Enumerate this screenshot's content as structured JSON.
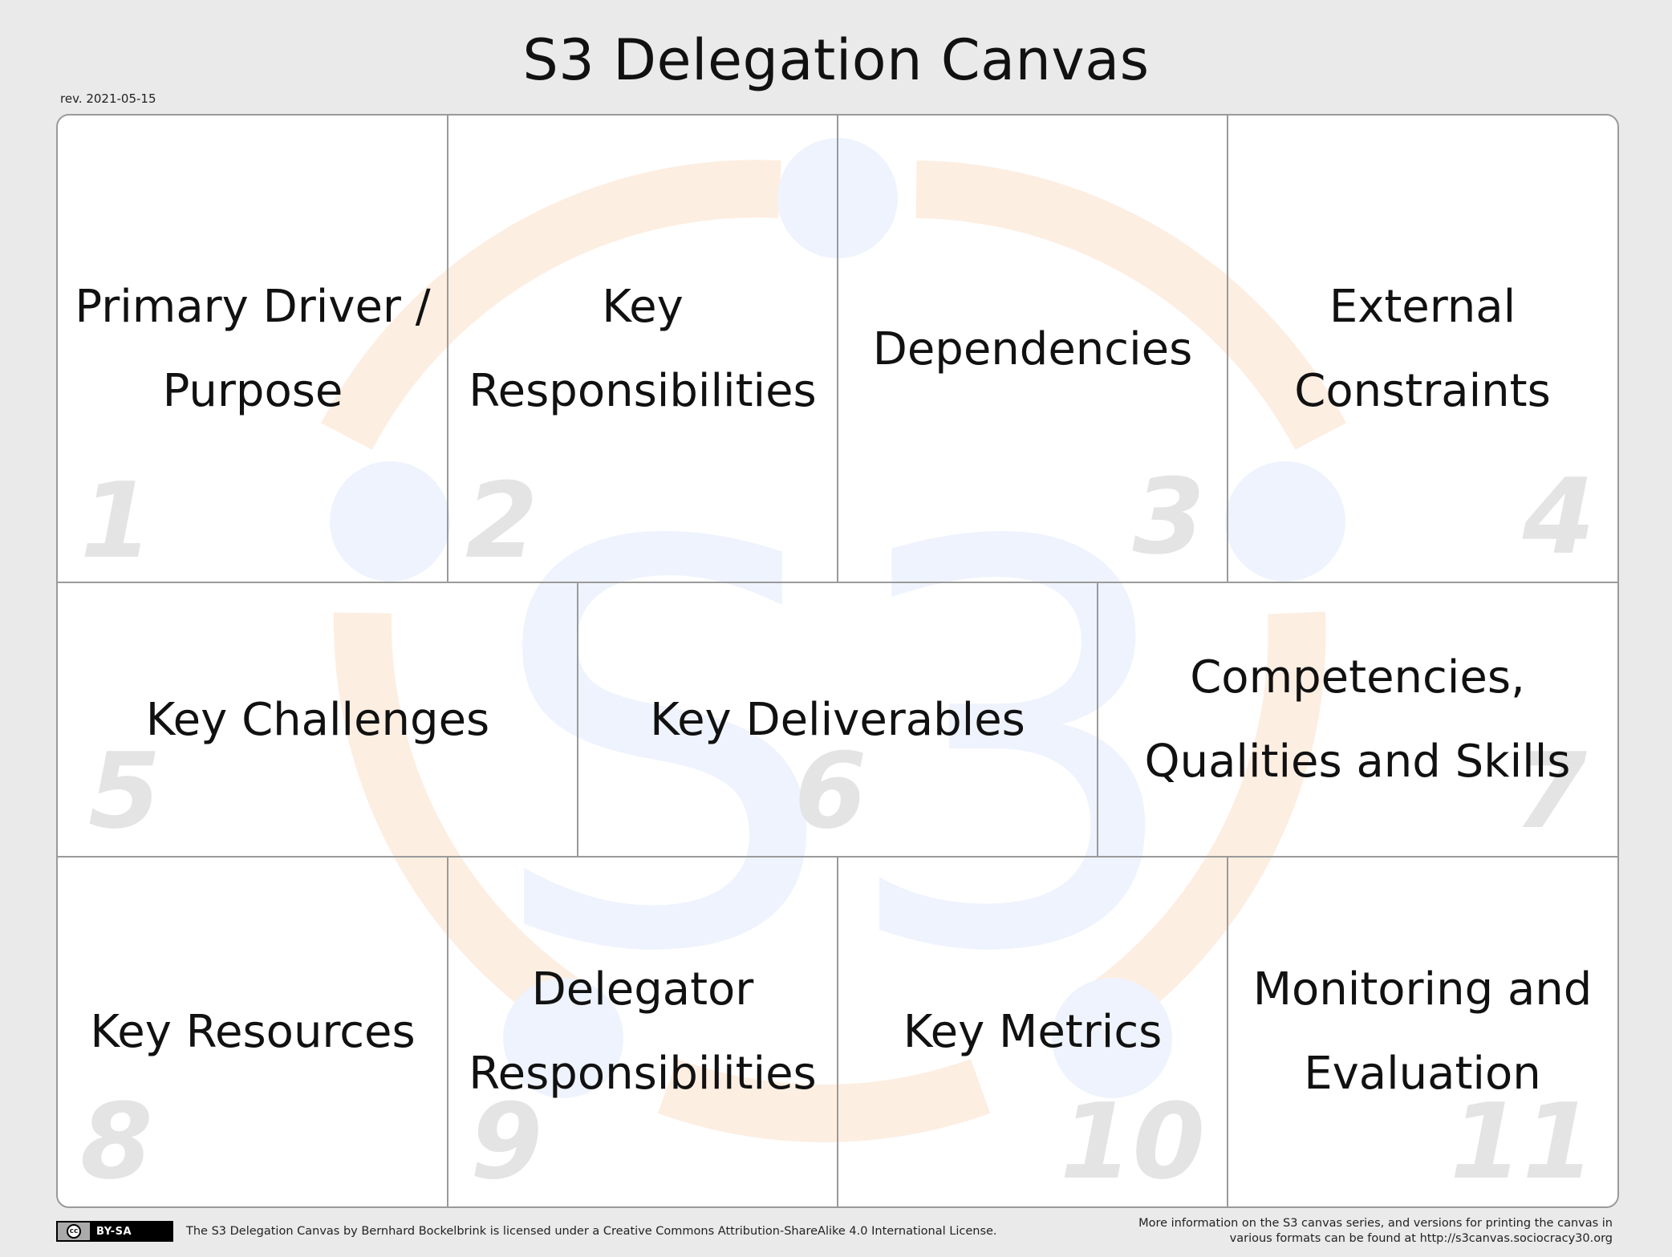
{
  "header": {
    "title": "S3 Delegation Canvas",
    "revision": "rev. 2021-05-15"
  },
  "cells": [
    {
      "number": "1",
      "label_lines": [
        "Primary Driver /",
        "Purpose"
      ]
    },
    {
      "number": "2",
      "label_lines": [
        "Key",
        "Responsibilities"
      ]
    },
    {
      "number": "3",
      "label_lines": [
        "Dependencies"
      ]
    },
    {
      "number": "4",
      "label_lines": [
        "External",
        "Constraints"
      ]
    },
    {
      "number": "5",
      "label_lines": [
        "Key Challenges"
      ]
    },
    {
      "number": "6",
      "label_lines": [
        "Key Deliverables"
      ]
    },
    {
      "number": "7",
      "label_lines": [
        "Competencies,",
        "Qualities and Skills"
      ]
    },
    {
      "number": "8",
      "label_lines": [
        "Key Resources"
      ]
    },
    {
      "number": "9",
      "label_lines": [
        "Delegator",
        "Responsibilities"
      ]
    },
    {
      "number": "10",
      "label_lines": [
        "Key Metrics"
      ]
    },
    {
      "number": "11",
      "label_lines": [
        "Monitoring and",
        "Evaluation"
      ]
    }
  ],
  "watermark": {
    "text": "S3",
    "ring_color": "#fdeee2",
    "dot_color": "#eef3fd",
    "letter_color": "#eef3fd"
  },
  "footer": {
    "license_badge": "BY-SA",
    "license_badge_icon": "cc",
    "license_text": "The S3 Delegation Canvas by Bernhard Bockelbrink is licensed under a Creative Commons Attribution-ShareAlike 4.0 International License.",
    "info_line1": "More information on the S3 canvas series, and versions for printing the canvas in",
    "info_line2": "various formats can be found at http://s3canvas.sociocracy30.org"
  }
}
